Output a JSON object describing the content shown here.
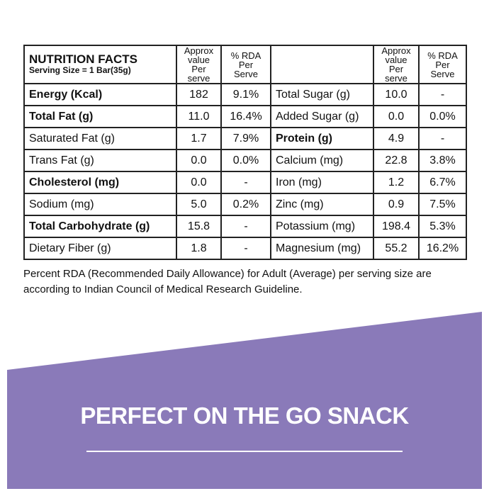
{
  "table": {
    "header": {
      "title": "NUTRITION FACTS",
      "serving_size": "Serving Size = 1 Bar(35g)",
      "columns": [
        "Approx value Per serve",
        "% RDA Per Serve",
        "Approx value Per serve",
        "% RDA Per Serve"
      ]
    },
    "rows": [
      [
        "Energy (Kcal)",
        "182",
        "9.1%",
        "Total Sugar (g)",
        "10.0",
        "-"
      ],
      [
        "Total Fat (g)",
        "11.0",
        "16.4%",
        "Added Sugar (g)",
        "0.0",
        "0.0%"
      ],
      [
        "Saturated Fat (g)",
        "1.7",
        "7.9%",
        "Protein (g)",
        "4.9",
        "-"
      ],
      [
        "Trans Fat (g)",
        "0.0",
        "0.0%",
        "Calcium (mg)",
        "22.8",
        "3.8%"
      ],
      [
        "Cholesterol (mg)",
        "0.0",
        "-",
        "Iron (mg)",
        "1.2",
        "6.7%"
      ],
      [
        "Sodium (mg)",
        "5.0",
        "0.2%",
        "Zinc (mg)",
        "0.9",
        "7.5%"
      ],
      [
        "Total Carbohydrate (g)",
        "15.8",
        "-",
        "Potassium (mg)",
        "198.4",
        "5.3%"
      ],
      [
        "Dietary Fiber (g)",
        "1.8",
        "-",
        "Magnesium (mg)",
        "55.2",
        "16.2%"
      ]
    ]
  },
  "note": "Percent RDA (Recommended Daily Allowance) for Adult (Average) per serving size are according to Indian Council of Medical Research Guideline.",
  "banner": {
    "text": "PERFECT ON THE GO SNACK"
  }
}
